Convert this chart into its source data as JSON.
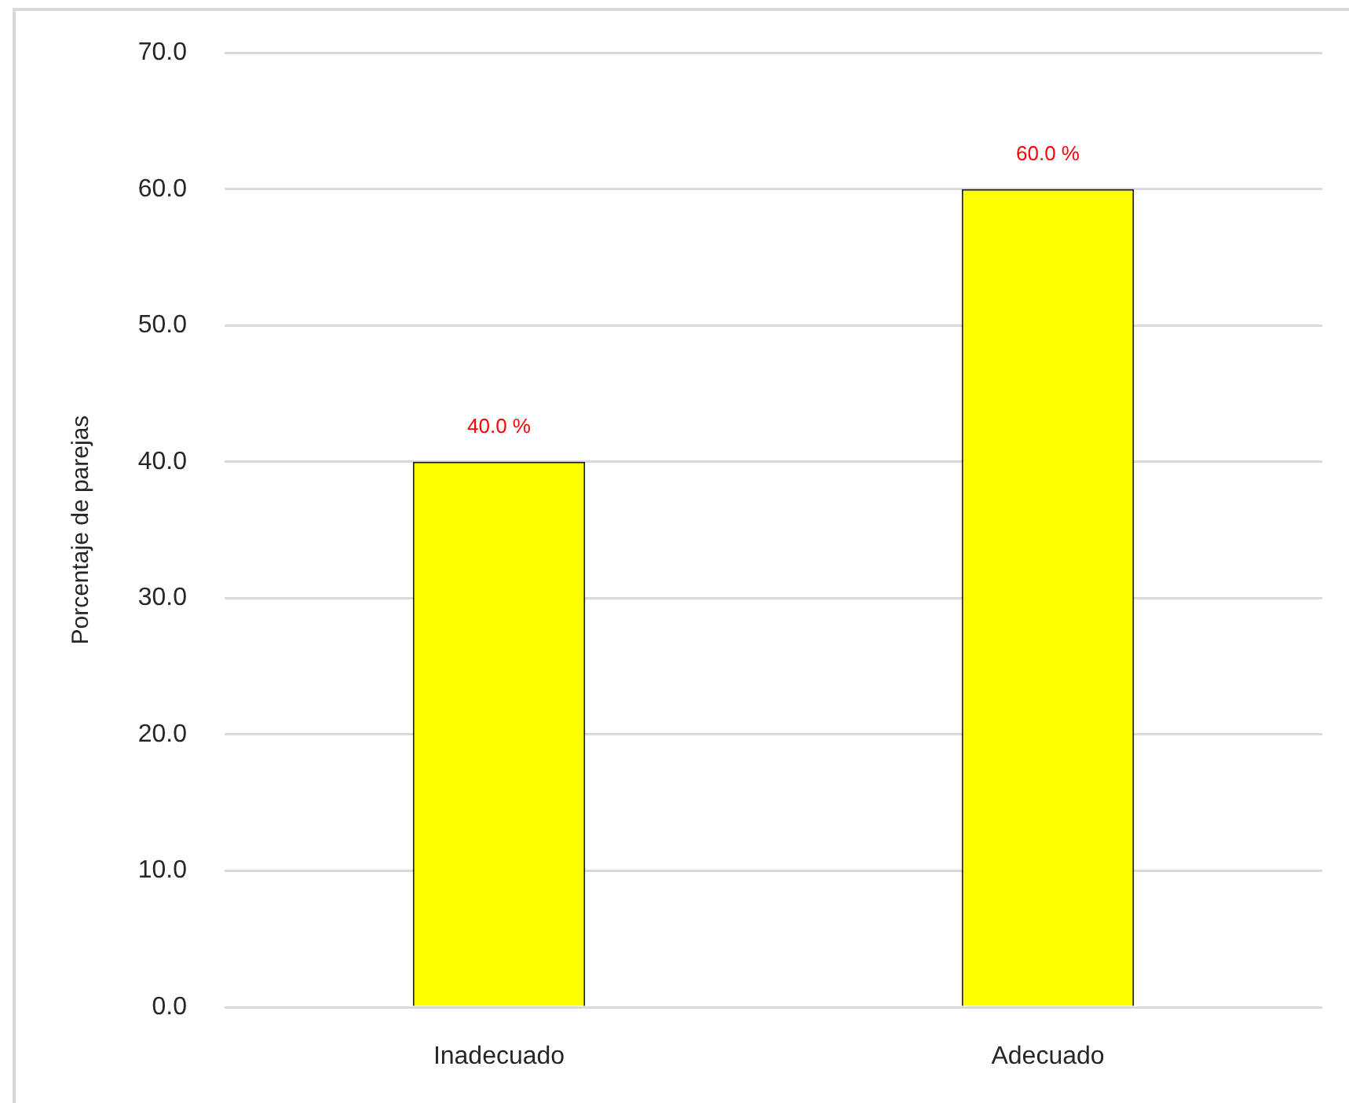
{
  "chart_data": {
    "type": "bar",
    "ylabel": "Porcentaje de parejas",
    "categories": [
      "Inadecuado",
      "Adecuado"
    ],
    "values": [
      40,
      60
    ],
    "color": "#ffff00",
    "value_labels": [
      "40.0 %",
      "60.0 %"
    ],
    "ylim": [
      0,
      70
    ],
    "yticks": [
      {
        "value": 0,
        "label": "0.0"
      },
      {
        "value": 10,
        "label": "10.0"
      },
      {
        "value": 20,
        "label": "20.0"
      },
      {
        "value": 30,
        "label": "30.0"
      },
      {
        "value": 40,
        "label": "40.0"
      },
      {
        "value": 50,
        "label": "50.0"
      },
      {
        "value": 60,
        "label": "60.0"
      },
      {
        "value": 70,
        "label": "70.0"
      }
    ],
    "grid": "y"
  }
}
